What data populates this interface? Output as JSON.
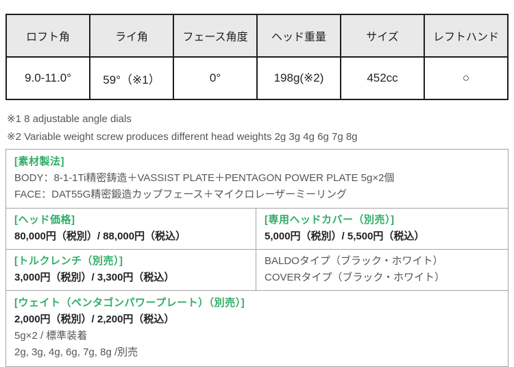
{
  "colors": {
    "accent_green": "#2fae66",
    "table_header_bg": "#e9e9e9",
    "table_border": "#1c1c1c",
    "box_border": "#a3a3a3"
  },
  "spec_table": {
    "headers": [
      "ロフト角",
      "ライ角",
      "フェース角度",
      "ヘッド重量",
      "サイズ",
      "レフトハンド"
    ],
    "values": [
      "9.0-11.0°",
      "59°（※1）",
      "0°",
      "198g(※2)",
      "452cc",
      "○"
    ]
  },
  "notes": {
    "note1": "※1  8 adjustable angle dials",
    "note2": "※2 Variable weight screw produces different head weights 2g 3g 4g 6g 7g 8g"
  },
  "material": {
    "title": "[素材製法]",
    "body_line": "BODY：8-1-1Ti精密鋳造＋VASSIST PLATE＋PENTAGON POWER PLATE 5g×2個",
    "face_line": "FACE：DAT55G精密鍛造カップフェース＋マイクロレーザーミーリング"
  },
  "head_price": {
    "title": "[ヘッド価格]",
    "price": "80,000円（税別）/ 88,000円（税込）"
  },
  "head_cover": {
    "title": "[専用ヘッドカバー（別売）]",
    "price": "5,000円（税別）/ 5,500円（税込）",
    "type1": "BALDOタイプ（ブラック・ホワイト）",
    "type2": "COVERタイプ（ブラック・ホワイト）"
  },
  "torque_wrench": {
    "title": "[トルクレンチ（別売）]",
    "price": "3,000円（税別）/ 3,300円（税込）"
  },
  "weight_plate": {
    "title": "[ウェイト（ペンタゴンパワープレート）（別売）]",
    "price": "2,000円（税別）/ 2,200円（税込）",
    "standard": "5g×2 / 標準装着",
    "optional": "2g, 3g, 4g, 6g, 7g, 8g /別売"
  }
}
